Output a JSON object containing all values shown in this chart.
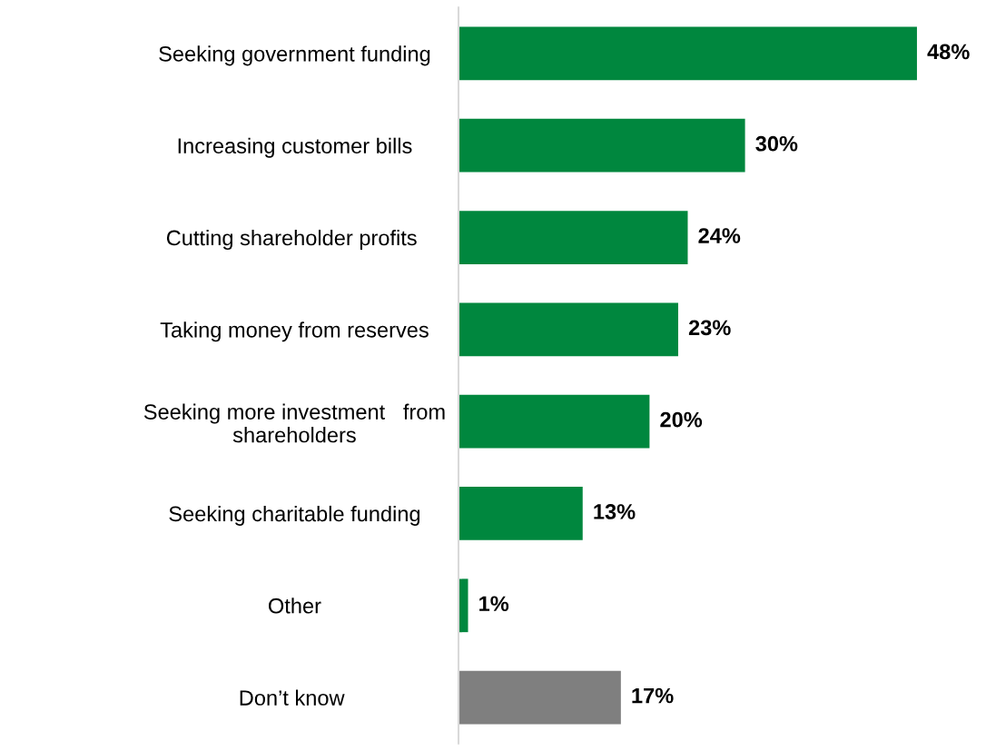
{
  "chart_data": {
    "type": "bar",
    "orientation": "horizontal",
    "categories": [
      "Seeking government funding",
      "Increasing customer bills",
      "Cutting shareholder profits ",
      "Taking money from reserves",
      "Seeking more investment   from\nshareholders",
      "Seeking charitable funding",
      "Other",
      "Don’t know "
    ],
    "values": [
      48,
      30,
      24,
      23,
      20,
      13,
      1,
      17
    ],
    "colors": [
      "#00873e",
      "#00873e",
      "#00873e",
      "#00873e",
      "#00873e",
      "#00873e",
      "#00873e",
      "#7f7f7f"
    ],
    "value_labels": [
      "48%",
      "30%",
      "24%",
      "23%",
      "20%",
      "13%",
      "1%",
      "17%"
    ],
    "tick_labels": "y",
    "grid": false,
    "legend": false
  }
}
